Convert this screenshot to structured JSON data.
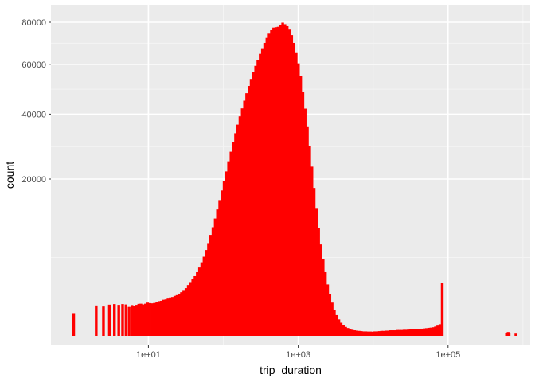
{
  "colors": {
    "panel_background": "#ebebeb",
    "grid_major": "#ffffff",
    "grid_minor": "#f4f4f4",
    "bar_fill": "#ff0000",
    "tick_text": "#4d4d4d"
  },
  "chart_data": {
    "type": "bar",
    "xlabel": "trip_duration",
    "ylabel": "count",
    "x_scale": "log10",
    "y_scale": "sqrt",
    "xlim": [
      0.5,
      1250000
    ],
    "ylim": [
      0,
      80000
    ],
    "x_ticks": [
      10,
      1000,
      100000
    ],
    "x_tick_labels": [
      "1e+01",
      "1e+03",
      "1e+05"
    ],
    "y_ticks": [
      20000,
      40000,
      60000,
      80000
    ],
    "y_tick_labels": [
      "20000",
      "40000",
      "60000",
      "80000"
    ],
    "grid": true,
    "legend": "none",
    "bars": [
      {
        "x": 1,
        "count": 420
      },
      {
        "x": 2,
        "count": 750
      },
      {
        "x": 2.5,
        "count": 700
      },
      {
        "x": 3,
        "count": 790
      },
      {
        "x": 3.5,
        "count": 820
      },
      {
        "x": 4,
        "count": 780
      },
      {
        "x": 4.5,
        "count": 820
      },
      {
        "x": 5,
        "count": 800
      },
      {
        "x": 5.5,
        "count": 680
      },
      {
        "x": 6,
        "count": 770
      },
      {
        "x": 6.4,
        "count": 740
      },
      {
        "x": 6.9,
        "count": 780
      },
      {
        "x": 7.4,
        "count": 830
      },
      {
        "x": 7.9,
        "count": 840
      },
      {
        "x": 8.5,
        "count": 800
      },
      {
        "x": 9.1,
        "count": 840
      },
      {
        "x": 9.7,
        "count": 900
      },
      {
        "x": 10.4,
        "count": 870
      },
      {
        "x": 11.2,
        "count": 860
      },
      {
        "x": 12,
        "count": 880
      },
      {
        "x": 12.9,
        "count": 920
      },
      {
        "x": 13.8,
        "count": 980
      },
      {
        "x": 14.8,
        "count": 1000
      },
      {
        "x": 15.8,
        "count": 1060
      },
      {
        "x": 17,
        "count": 1080
      },
      {
        "x": 18.2,
        "count": 1130
      },
      {
        "x": 19.5,
        "count": 1200
      },
      {
        "x": 20.9,
        "count": 1230
      },
      {
        "x": 22.4,
        "count": 1300
      },
      {
        "x": 24,
        "count": 1350
      },
      {
        "x": 25.7,
        "count": 1450
      },
      {
        "x": 27.5,
        "count": 1550
      },
      {
        "x": 29.5,
        "count": 1650
      },
      {
        "x": 31.6,
        "count": 1850
      },
      {
        "x": 33.9,
        "count": 2100
      },
      {
        "x": 36.3,
        "count": 2350
      },
      {
        "x": 38.9,
        "count": 2600
      },
      {
        "x": 41.7,
        "count": 2900
      },
      {
        "x": 44.7,
        "count": 3300
      },
      {
        "x": 47.9,
        "count": 3800
      },
      {
        "x": 51.3,
        "count": 4400
      },
      {
        "x": 55,
        "count": 5100
      },
      {
        "x": 58.9,
        "count": 6000
      },
      {
        "x": 63.1,
        "count": 7000
      },
      {
        "x": 67.6,
        "count": 8300
      },
      {
        "x": 72.4,
        "count": 9600
      },
      {
        "x": 77.6,
        "count": 11200
      },
      {
        "x": 83.2,
        "count": 13000
      },
      {
        "x": 89.1,
        "count": 15000
      },
      {
        "x": 95.5,
        "count": 17200
      },
      {
        "x": 102,
        "count": 19500
      },
      {
        "x": 110,
        "count": 22000
      },
      {
        "x": 117,
        "count": 24800
      },
      {
        "x": 126,
        "count": 27600
      },
      {
        "x": 135,
        "count": 30500
      },
      {
        "x": 145,
        "count": 33400
      },
      {
        "x": 155,
        "count": 36300
      },
      {
        "x": 166,
        "count": 39200
      },
      {
        "x": 178,
        "count": 42100
      },
      {
        "x": 191,
        "count": 45000
      },
      {
        "x": 204,
        "count": 47900
      },
      {
        "x": 219,
        "count": 50800
      },
      {
        "x": 234,
        "count": 53700
      },
      {
        "x": 251,
        "count": 56500
      },
      {
        "x": 269,
        "count": 59300
      },
      {
        "x": 288,
        "count": 62000
      },
      {
        "x": 309,
        "count": 64700
      },
      {
        "x": 331,
        "count": 67300
      },
      {
        "x": 355,
        "count": 69800
      },
      {
        "x": 380,
        "count": 72200
      },
      {
        "x": 407,
        "count": 74300
      },
      {
        "x": 437,
        "count": 76000
      },
      {
        "x": 468,
        "count": 77300
      },
      {
        "x": 501,
        "count": 77500
      },
      {
        "x": 537,
        "count": 77700
      },
      {
        "x": 575,
        "count": 78800
      },
      {
        "x": 617,
        "count": 79800
      },
      {
        "x": 661,
        "count": 79000
      },
      {
        "x": 708,
        "count": 78000
      },
      {
        "x": 759,
        "count": 76300
      },
      {
        "x": 813,
        "count": 73600
      },
      {
        "x": 871,
        "count": 69800
      },
      {
        "x": 933,
        "count": 65400
      },
      {
        "x": 1000,
        "count": 60400
      },
      {
        "x": 1072,
        "count": 54800
      },
      {
        "x": 1148,
        "count": 48300
      },
      {
        "x": 1230,
        "count": 42000
      },
      {
        "x": 1318,
        "count": 35700
      },
      {
        "x": 1413,
        "count": 29300
      },
      {
        "x": 1514,
        "count": 23300
      },
      {
        "x": 1622,
        "count": 17800
      },
      {
        "x": 1738,
        "count": 13300
      },
      {
        "x": 1862,
        "count": 9500
      },
      {
        "x": 1995,
        "count": 6800
      },
      {
        "x": 2138,
        "count": 4800
      },
      {
        "x": 2291,
        "count": 3300
      },
      {
        "x": 2455,
        "count": 2150
      },
      {
        "x": 2630,
        "count": 1400
      },
      {
        "x": 2818,
        "count": 900
      },
      {
        "x": 3020,
        "count": 560
      },
      {
        "x": 3236,
        "count": 350
      },
      {
        "x": 3467,
        "count": 220
      },
      {
        "x": 3715,
        "count": 140
      },
      {
        "x": 3981,
        "count": 90
      },
      {
        "x": 4266,
        "count": 65
      },
      {
        "x": 4571,
        "count": 50
      },
      {
        "x": 4898,
        "count": 40
      },
      {
        "x": 5248,
        "count": 30
      },
      {
        "x": 5623,
        "count": 25
      },
      {
        "x": 6026,
        "count": 22
      },
      {
        "x": 6457,
        "count": 20
      },
      {
        "x": 6918,
        "count": 18
      },
      {
        "x": 7413,
        "count": 16
      },
      {
        "x": 7943,
        "count": 16
      },
      {
        "x": 8511,
        "count": 15
      },
      {
        "x": 9120,
        "count": 15
      },
      {
        "x": 9772,
        "count": 14
      },
      {
        "x": 10471,
        "count": 16
      },
      {
        "x": 11220,
        "count": 16
      },
      {
        "x": 12023,
        "count": 18
      },
      {
        "x": 12882,
        "count": 20
      },
      {
        "x": 13804,
        "count": 20
      },
      {
        "x": 14791,
        "count": 22
      },
      {
        "x": 15849,
        "count": 22
      },
      {
        "x": 16982,
        "count": 25
      },
      {
        "x": 18197,
        "count": 25
      },
      {
        "x": 19498,
        "count": 25
      },
      {
        "x": 20893,
        "count": 28
      },
      {
        "x": 22387,
        "count": 28
      },
      {
        "x": 23988,
        "count": 28
      },
      {
        "x": 25704,
        "count": 30
      },
      {
        "x": 27542,
        "count": 30
      },
      {
        "x": 29512,
        "count": 32
      },
      {
        "x": 31623,
        "count": 35
      },
      {
        "x": 33884,
        "count": 35
      },
      {
        "x": 36308,
        "count": 38
      },
      {
        "x": 38905,
        "count": 40
      },
      {
        "x": 41687,
        "count": 40
      },
      {
        "x": 44668,
        "count": 42
      },
      {
        "x": 47863,
        "count": 45
      },
      {
        "x": 51286,
        "count": 48
      },
      {
        "x": 54954,
        "count": 52
      },
      {
        "x": 58884,
        "count": 55
      },
      {
        "x": 63096,
        "count": 60
      },
      {
        "x": 67608,
        "count": 70
      },
      {
        "x": 72444,
        "count": 85
      },
      {
        "x": 77625,
        "count": 110
      },
      {
        "x": 83176,
        "count": 2300
      },
      {
        "x": 600000,
        "count": 6
      },
      {
        "x": 630000,
        "count": 12
      },
      {
        "x": 650000,
        "count": 6
      },
      {
        "x": 800000,
        "count": 4
      }
    ]
  }
}
